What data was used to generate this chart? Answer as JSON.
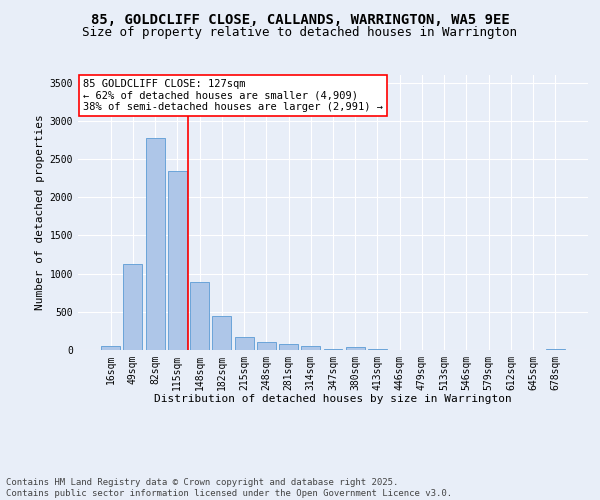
{
  "title_line1": "85, GOLDCLIFF CLOSE, CALLANDS, WARRINGTON, WA5 9EE",
  "title_line2": "Size of property relative to detached houses in Warrington",
  "xlabel": "Distribution of detached houses by size in Warrington",
  "ylabel": "Number of detached properties",
  "categories": [
    "16sqm",
    "49sqm",
    "82sqm",
    "115sqm",
    "148sqm",
    "182sqm",
    "215sqm",
    "248sqm",
    "281sqm",
    "314sqm",
    "347sqm",
    "380sqm",
    "413sqm",
    "446sqm",
    "479sqm",
    "513sqm",
    "546sqm",
    "579sqm",
    "612sqm",
    "645sqm",
    "678sqm"
  ],
  "values": [
    50,
    1120,
    2780,
    2340,
    890,
    440,
    170,
    105,
    85,
    55,
    10,
    40,
    15,
    5,
    5,
    0,
    0,
    0,
    0,
    0,
    10
  ],
  "bar_color": "#aec6e8",
  "bar_edge_color": "#5b9bd5",
  "vline_pos": 3.5,
  "vline_color": "red",
  "annotation_title": "85 GOLDCLIFF CLOSE: 127sqm",
  "annotation_line1": "← 62% of detached houses are smaller (4,909)",
  "annotation_line2": "38% of semi-detached houses are larger (2,991) →",
  "annotation_box_color": "red",
  "ylim": [
    0,
    3600
  ],
  "yticks": [
    0,
    500,
    1000,
    1500,
    2000,
    2500,
    3000,
    3500
  ],
  "bg_color": "#e8eef8",
  "plot_bg_color": "#e8eef8",
  "footer_line1": "Contains HM Land Registry data © Crown copyright and database right 2025.",
  "footer_line2": "Contains public sector information licensed under the Open Government Licence v3.0.",
  "title_fontsize": 10,
  "subtitle_fontsize": 9,
  "axis_label_fontsize": 8,
  "tick_fontsize": 7,
  "annotation_fontsize": 7.5,
  "footer_fontsize": 6.5
}
